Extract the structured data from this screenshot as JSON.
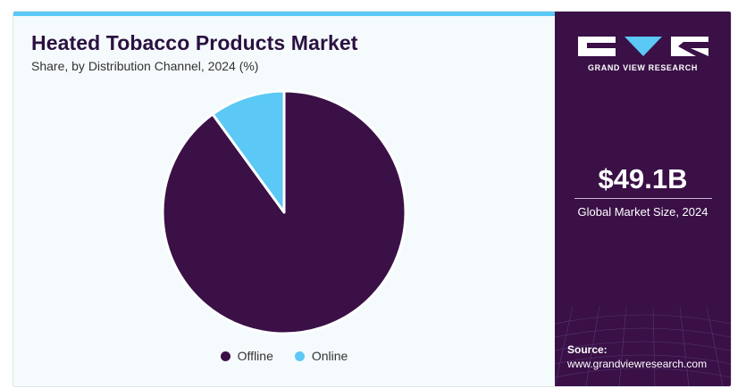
{
  "header": {
    "title": "Heated Tobacco Products Market",
    "subtitle": "Share, by Distribution Channel, 2024 (%)"
  },
  "chart_data": {
    "type": "pie",
    "title": "Heated Tobacco Products Market",
    "subtitle": "Share, by Distribution Channel, 2024 (%)",
    "categories": [
      "Offline",
      "Online"
    ],
    "values": [
      90,
      10
    ],
    "colors": [
      "#3a1047",
      "#5bc8f5"
    ],
    "legend_position": "bottom"
  },
  "sidebar": {
    "brand": "GRAND VIEW RESEARCH",
    "market_value": "$49.1B",
    "market_label": "Global Market Size, 2024",
    "source_label": "Source:",
    "source_url": "www.grandviewresearch.com"
  },
  "colors": {
    "accent": "#5bc8f5",
    "brand_dark": "#3a1047"
  }
}
